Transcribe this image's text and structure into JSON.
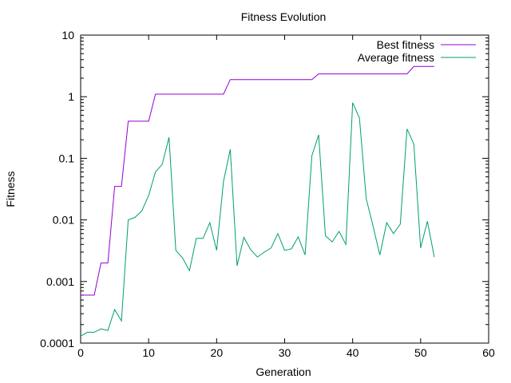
{
  "chart_data": {
    "type": "line",
    "title": "Fitness Evolution",
    "xlabel": "Generation",
    "ylabel": "Fitness",
    "yscale": "log",
    "xlim": [
      0,
      60
    ],
    "ylim": [
      0.0001,
      10
    ],
    "xticks": [
      0,
      10,
      20,
      30,
      40,
      50,
      60
    ],
    "xtick_labels": [
      "0",
      "10",
      "20",
      "30",
      "40",
      "50",
      "60"
    ],
    "yticks": [
      0.0001,
      0.001,
      0.01,
      0.1,
      1,
      10
    ],
    "ytick_labels": [
      "0.0001",
      "0.001",
      "0.01",
      "0.1",
      "1",
      "10"
    ],
    "grid": false,
    "legend_position": "top-right",
    "series": [
      {
        "name": "Best fitness",
        "color": "#9400d3",
        "x": [
          0,
          1,
          2,
          3,
          4,
          5,
          6,
          7,
          8,
          9,
          10,
          11,
          12,
          13,
          14,
          15,
          16,
          17,
          18,
          19,
          20,
          21,
          22,
          23,
          24,
          25,
          26,
          27,
          28,
          29,
          30,
          31,
          32,
          33,
          34,
          35,
          36,
          37,
          38,
          39,
          40,
          41,
          42,
          43,
          44,
          45,
          46,
          47,
          48,
          49,
          50,
          51,
          52
        ],
        "values": [
          0.0006,
          0.0006,
          0.0006,
          0.002,
          0.002,
          0.035,
          0.035,
          0.4,
          0.4,
          0.4,
          0.4,
          1.1,
          1.1,
          1.1,
          1.1,
          1.1,
          1.1,
          1.1,
          1.1,
          1.1,
          1.1,
          1.1,
          1.9,
          1.9,
          1.9,
          1.9,
          1.9,
          1.9,
          1.9,
          1.9,
          1.9,
          1.9,
          1.9,
          1.9,
          1.9,
          2.35,
          2.35,
          2.35,
          2.35,
          2.35,
          2.35,
          2.35,
          2.35,
          2.35,
          2.35,
          2.35,
          2.35,
          2.35,
          2.35,
          3.1,
          3.1,
          3.1,
          3.1
        ]
      },
      {
        "name": "Average fitness",
        "color": "#009e73",
        "x": [
          0,
          1,
          2,
          3,
          4,
          5,
          6,
          7,
          8,
          9,
          10,
          11,
          12,
          13,
          14,
          15,
          16,
          17,
          18,
          19,
          20,
          21,
          22,
          23,
          24,
          25,
          26,
          27,
          28,
          29,
          30,
          31,
          32,
          33,
          34,
          35,
          36,
          37,
          38,
          39,
          40,
          41,
          42,
          43,
          44,
          45,
          46,
          47,
          48,
          49,
          50,
          51,
          52
        ],
        "values": [
          0.00013,
          0.00015,
          0.00015,
          0.00017,
          0.00016,
          0.00035,
          0.00023,
          0.01,
          0.011,
          0.014,
          0.025,
          0.06,
          0.08,
          0.22,
          0.0032,
          0.0024,
          0.0015,
          0.005,
          0.005,
          0.009,
          0.0032,
          0.042,
          0.14,
          0.0018,
          0.0052,
          0.0033,
          0.0025,
          0.003,
          0.0035,
          0.006,
          0.0032,
          0.0034,
          0.0053,
          0.0027,
          0.11,
          0.24,
          0.0055,
          0.0044,
          0.0065,
          0.004,
          0.8,
          0.45,
          0.022,
          0.008,
          0.0027,
          0.009,
          0.006,
          0.0085,
          0.3,
          0.17,
          0.0035,
          0.0095,
          0.0025
        ]
      }
    ]
  }
}
